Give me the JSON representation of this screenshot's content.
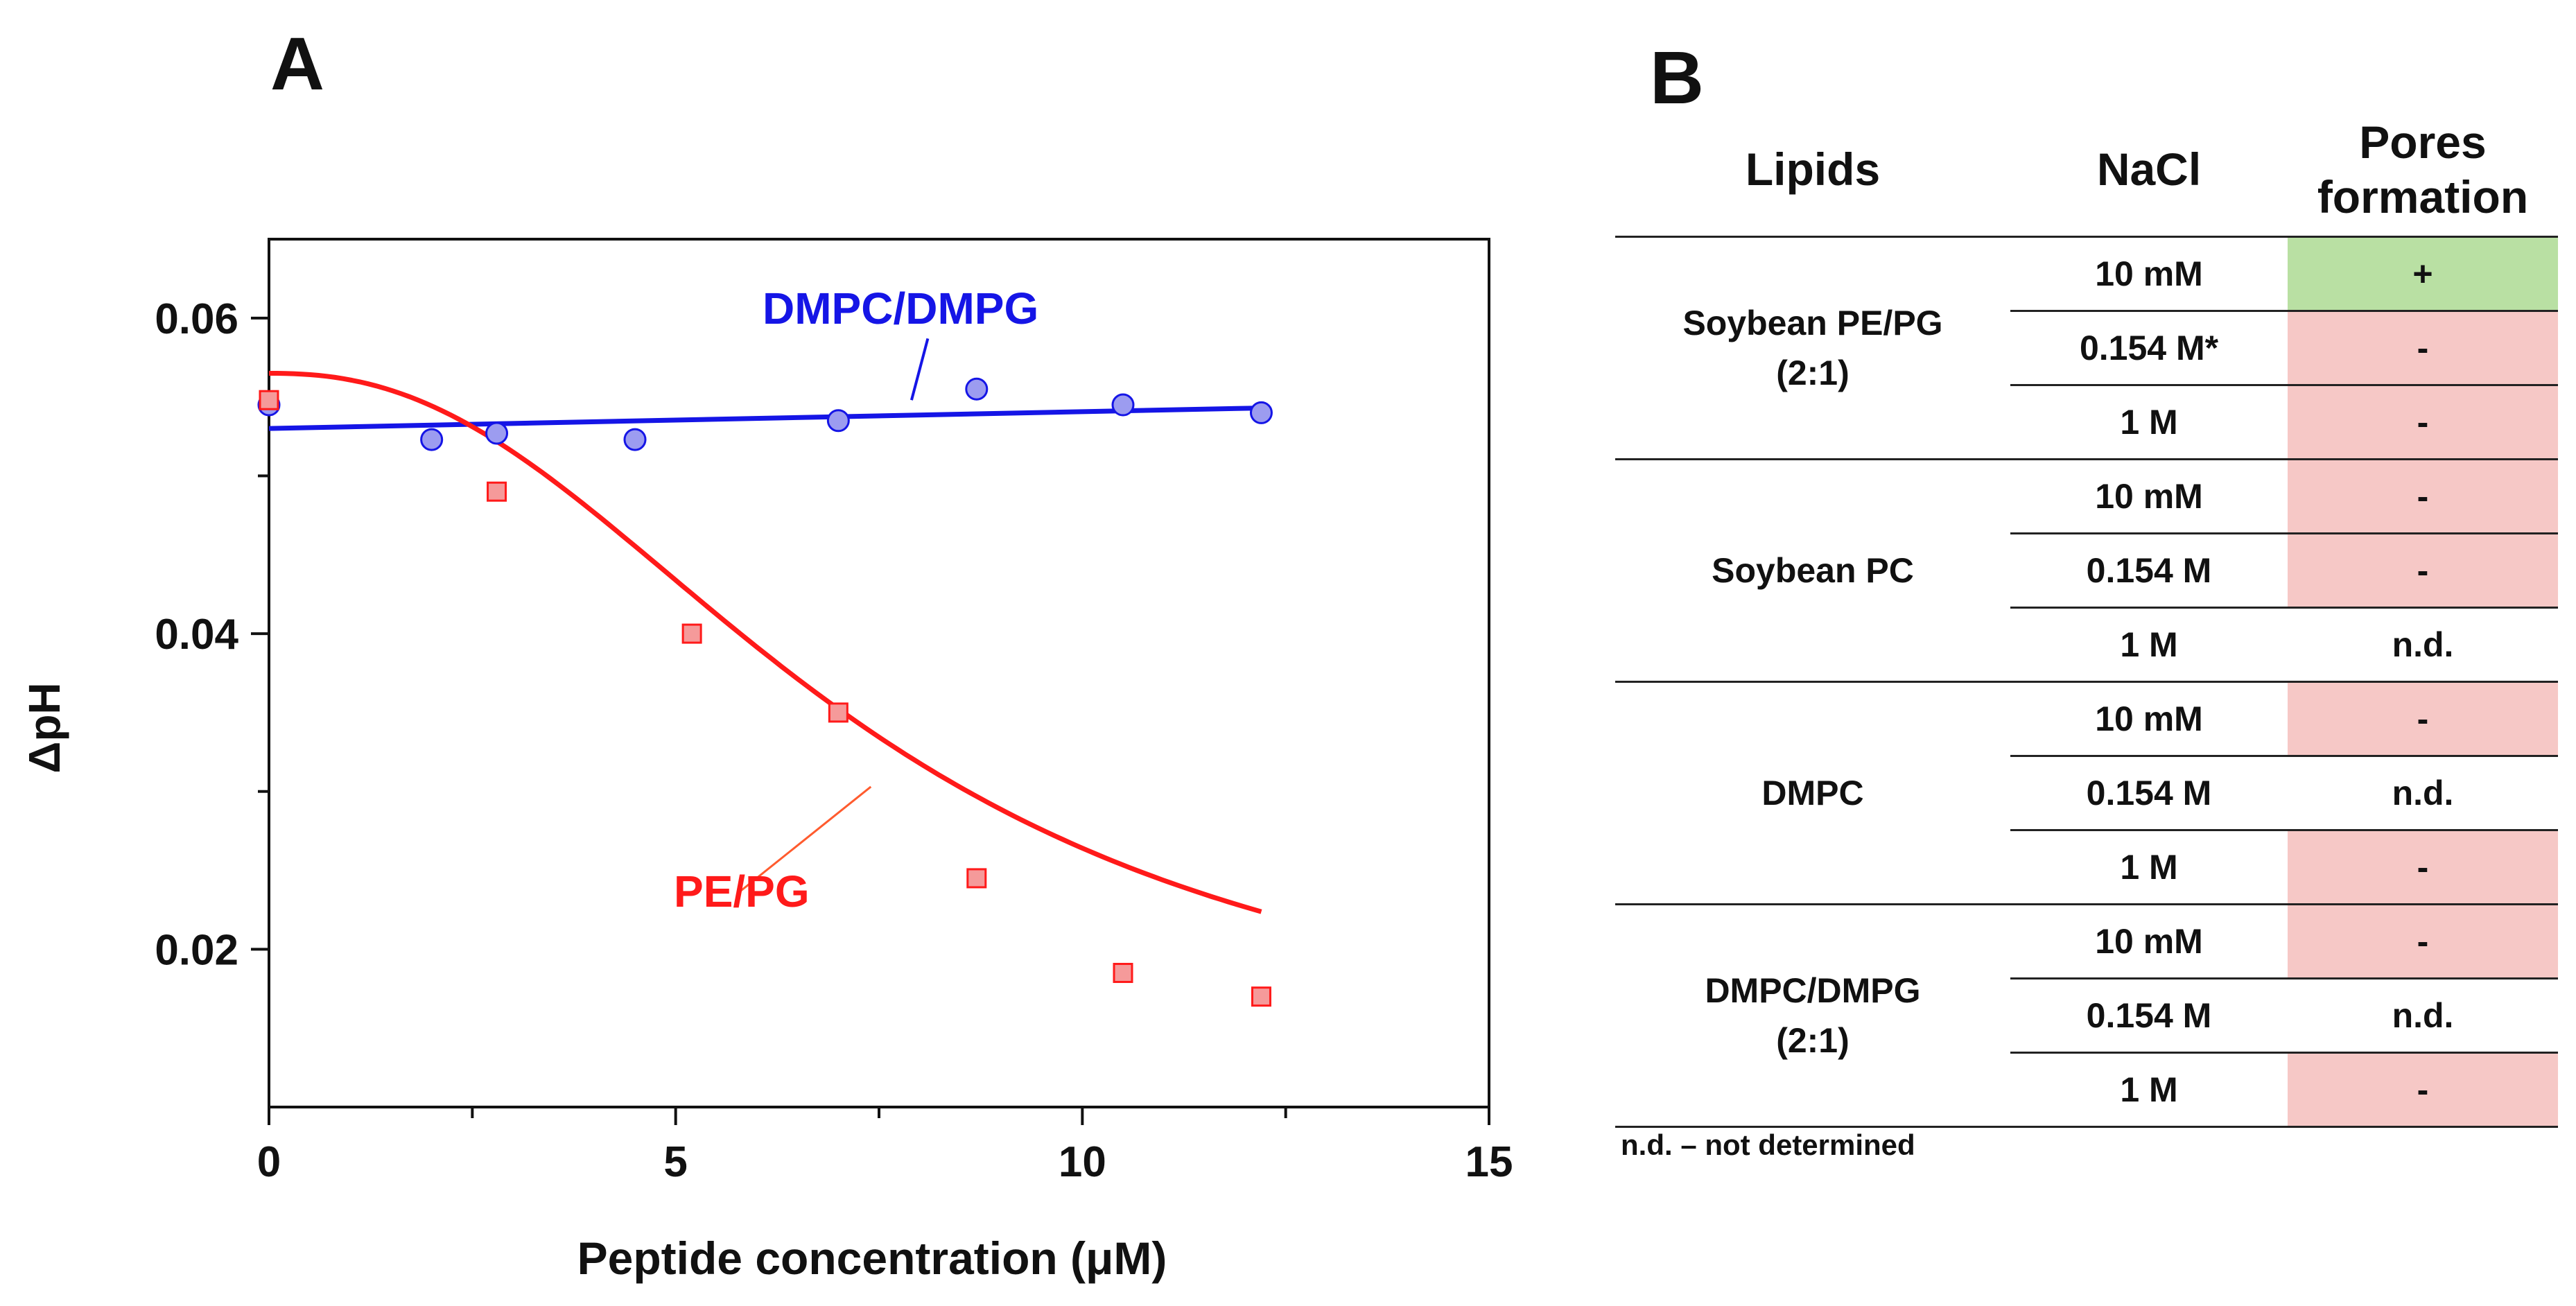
{
  "panel_labels": {
    "a": "A",
    "b": "B"
  },
  "colors": {
    "blue": "#1515e6",
    "blue_marker": "#9c9cf0",
    "red": "#ff1a1a",
    "red_marker": "#f59a9a",
    "axis": "#111111",
    "positive": "#b9e0a3",
    "negative": "#f6c8c6"
  },
  "chart_data": {
    "type": "scatter",
    "title": "",
    "xlabel": "Peptide concentration (μM)",
    "ylabel": "ΔpH",
    "xlim": [
      0,
      15
    ],
    "ylim": [
      0.01,
      0.065
    ],
    "xticks": [
      0,
      5,
      10,
      15
    ],
    "xtick_labels": [
      "0",
      "5",
      "10",
      "15"
    ],
    "yticks": [
      0.02,
      0.04,
      0.06
    ],
    "ytick_labels": [
      "0.02",
      "0.04",
      "0.06"
    ],
    "grid": false,
    "series": [
      {
        "name": "DMPC/DMPG",
        "marker": "circle",
        "x": [
          0,
          2.0,
          2.8,
          4.5,
          7.0,
          8.7,
          10.5,
          12.2
        ],
        "y": [
          0.0545,
          0.0523,
          0.0527,
          0.0523,
          0.0535,
          0.0555,
          0.0545,
          0.054
        ],
        "fit": {
          "kind": "linear",
          "x": [
            0,
            12.2
          ],
          "y": [
            0.053,
            0.0543
          ]
        }
      },
      {
        "name": "PE/PG",
        "marker": "square",
        "x": [
          0,
          2.8,
          5.2,
          7.0,
          8.7,
          10.5,
          12.2
        ],
        "y": [
          0.0548,
          0.049,
          0.04,
          0.035,
          0.0245,
          0.0185,
          0.017
        ],
        "fit": {
          "kind": "sigmoid",
          "top": 0.0565,
          "bottom": 0.0125,
          "x50": 7.2,
          "slope": 2.35,
          "x_range": [
            0,
            12.2
          ]
        }
      }
    ],
    "annotations": [
      {
        "text": "DMPC/DMPG",
        "series": "DMPC/DMPG"
      },
      {
        "text": "PE/PG",
        "series": "PE/PG"
      }
    ]
  },
  "table": {
    "headers": {
      "lipids": "Lipids",
      "nacl": "NaCl",
      "pores_line1": "Pores",
      "pores_line2": "formation"
    },
    "groups": [
      {
        "lipid_line1": "Soybean PE/PG",
        "lipid_line2": "(2:1)",
        "rows": [
          {
            "nacl": "10 mM",
            "pores": "+",
            "status": "pos"
          },
          {
            "nacl": "0.154 M*",
            "pores": "-",
            "status": "neg"
          },
          {
            "nacl": "1 M",
            "pores": "-",
            "status": "neg"
          }
        ]
      },
      {
        "lipid_line1": "Soybean PC",
        "lipid_line2": "",
        "rows": [
          {
            "nacl": "10 mM",
            "pores": "-",
            "status": "neg"
          },
          {
            "nacl": "0.154 M",
            "pores": "-",
            "status": "neg"
          },
          {
            "nacl": "1 M",
            "pores": "n.d.",
            "status": "nd"
          }
        ]
      },
      {
        "lipid_line1": "DMPC",
        "lipid_line2": "",
        "rows": [
          {
            "nacl": "10 mM",
            "pores": "-",
            "status": "neg"
          },
          {
            "nacl": "0.154 M",
            "pores": "n.d.",
            "status": "nd"
          },
          {
            "nacl": "1 M",
            "pores": "-",
            "status": "neg"
          }
        ]
      },
      {
        "lipid_line1": "DMPC/DMPG",
        "lipid_line2": "(2:1)",
        "rows": [
          {
            "nacl": "10 mM",
            "pores": "-",
            "status": "neg"
          },
          {
            "nacl": "0.154 M",
            "pores": "n.d.",
            "status": "nd"
          },
          {
            "nacl": "1 M",
            "pores": "-",
            "status": "neg"
          }
        ]
      }
    ],
    "footnote": "n.d. – not determined"
  }
}
